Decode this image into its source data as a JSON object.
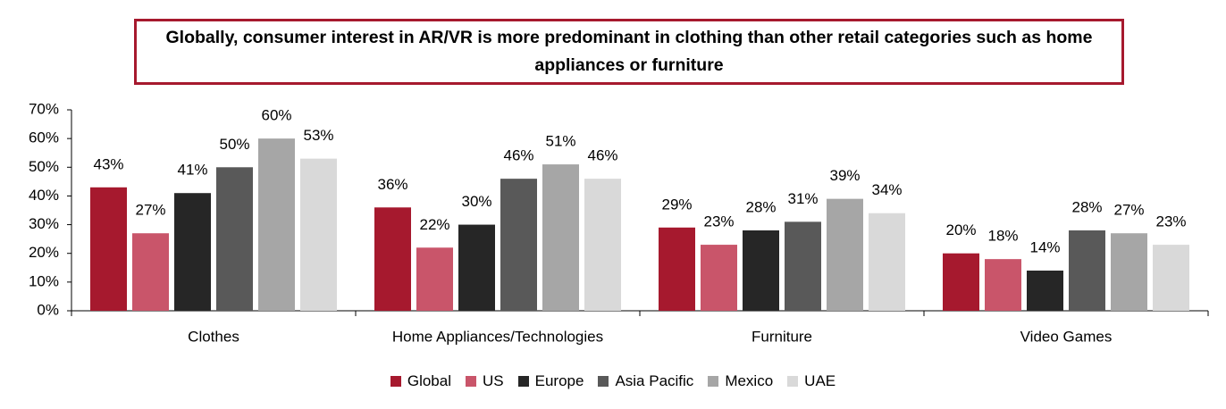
{
  "chart_data": {
    "type": "bar",
    "title": "Globally, consumer interest in AR/VR is more predominant in clothing than other retail categories such as home appliances or furniture",
    "categories": [
      "Clothes",
      "Home Appliances/Technologies",
      "Furniture",
      "Video Games"
    ],
    "series": [
      {
        "name": "Global",
        "color": "#a6192e",
        "values": [
          43,
          36,
          29,
          20
        ],
        "value_labels": [
          "43%",
          "36%",
          "29%",
          "20%"
        ]
      },
      {
        "name": "US",
        "color": "#c9556a",
        "values": [
          27,
          22,
          23,
          18
        ],
        "value_labels": [
          "27%",
          "22%",
          "23%",
          "18%"
        ]
      },
      {
        "name": "Europe",
        "color": "#262626",
        "values": [
          41,
          30,
          28,
          14
        ],
        "value_labels": [
          "41%",
          "30%",
          "28%",
          "14%"
        ]
      },
      {
        "name": "Asia Pacific",
        "color": "#595959",
        "values": [
          50,
          46,
          31,
          28
        ],
        "value_labels": [
          "50%",
          "46%",
          "31%",
          "28%"
        ]
      },
      {
        "name": "Mexico",
        "color": "#a6a6a6",
        "values": [
          60,
          51,
          39,
          27
        ],
        "value_labels": [
          "60%",
          "51%",
          "39%",
          "27%"
        ]
      },
      {
        "name": "UAE",
        "color": "#d9d9d9",
        "values": [
          53,
          46,
          34,
          23
        ],
        "value_labels": [
          "53%",
          "46%",
          "34%",
          "23%"
        ]
      }
    ],
    "ylim": [
      0,
      70
    ],
    "yticks": [
      {
        "value": 0,
        "label": "0%"
      },
      {
        "value": 10,
        "label": "10%"
      },
      {
        "value": 20,
        "label": "20%"
      },
      {
        "value": 30,
        "label": "30%"
      },
      {
        "value": 40,
        "label": "40%"
      },
      {
        "value": 50,
        "label": "50%"
      },
      {
        "value": 60,
        "label": "60%"
      },
      {
        "value": 70,
        "label": "70%"
      }
    ],
    "grid": false,
    "legend": "bottom"
  }
}
